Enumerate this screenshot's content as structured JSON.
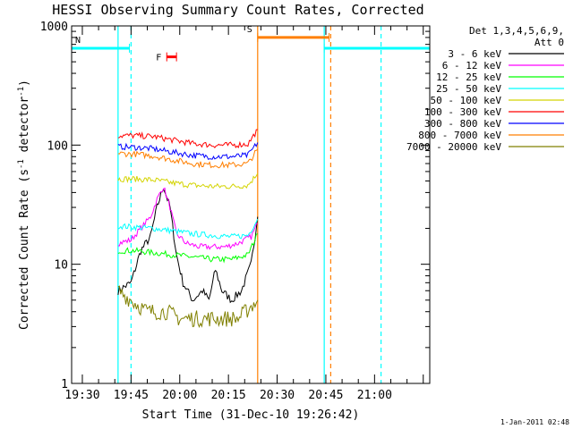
{
  "chart_data": {
    "type": "line",
    "title": "HESSI Observing Summary Count Rates, Corrected",
    "xlabel": "Start Time (31-Dec-10 19:26:42)",
    "ylabel": "Corrected Count Rate (s",
    "ylabel_sup1": "-1",
    "ylabel_mid": " detector",
    "ylabel_sup2": "-1",
    "ylabel_end": ")",
    "timestamp": "1-Jan-2011 02:48",
    "yscale": "log",
    "xlim": [
      "19:26:42",
      "21:17"
    ],
    "ylim": [
      1,
      1000
    ],
    "x_ticks": [
      "19:30",
      "19:45",
      "20:00",
      "20:15",
      "20:30",
      "20:45",
      "21:00"
    ],
    "y_ticks": [
      {
        "value": 1,
        "label": "1"
      },
      {
        "value": 10,
        "label": "10"
      },
      {
        "value": 100,
        "label": "100"
      },
      {
        "value": 1000,
        "label": "1000"
      }
    ],
    "legend": {
      "placement": "right",
      "header1": "Det 1,3,4,5,6,9,",
      "header2": "Att 0"
    },
    "series": [
      {
        "name": "3 - 6 keV",
        "color": "#000000",
        "points": [
          [
            "19:41",
            "6"
          ],
          [
            "19:45",
            "7"
          ],
          [
            "19:48",
            "13"
          ],
          [
            "19:51",
            "17"
          ],
          [
            "19:53",
            "30"
          ],
          [
            "19:55",
            "45"
          ],
          [
            "19:57",
            "30"
          ],
          [
            "19:59",
            "12"
          ],
          [
            "20:01",
            "7"
          ],
          [
            "20:04",
            "5"
          ],
          [
            "20:07",
            "6"
          ],
          [
            "20:09",
            "5"
          ],
          [
            "20:11",
            "9"
          ],
          [
            "20:13",
            "6"
          ],
          [
            "20:16",
            "5"
          ],
          [
            "20:19",
            "6"
          ],
          [
            "20:22",
            "10"
          ],
          [
            "20:24",
            "25"
          ]
        ]
      },
      {
        "name": "6 - 12 keV",
        "color": "#ff00ff",
        "points": [
          [
            "19:41",
            "15"
          ],
          [
            "19:45",
            "16"
          ],
          [
            "19:48",
            "20"
          ],
          [
            "19:51",
            "25"
          ],
          [
            "19:53",
            "35"
          ],
          [
            "19:55",
            "45"
          ],
          [
            "19:57",
            "30"
          ],
          [
            "19:59",
            "18"
          ],
          [
            "20:02",
            "15"
          ],
          [
            "20:06",
            "14"
          ],
          [
            "20:10",
            "14"
          ],
          [
            "20:14",
            "14"
          ],
          [
            "20:18",
            "15"
          ],
          [
            "20:22",
            "17"
          ],
          [
            "20:24",
            "22"
          ]
        ]
      },
      {
        "name": "12 - 25 keV",
        "color": "#00ff00",
        "points": [
          [
            "19:41",
            "13"
          ],
          [
            "19:46",
            "13"
          ],
          [
            "19:52",
            "12.5"
          ],
          [
            "19:58",
            "12"
          ],
          [
            "20:04",
            "11.5"
          ],
          [
            "20:10",
            "11"
          ],
          [
            "20:16",
            "11"
          ],
          [
            "20:21",
            "12"
          ],
          [
            "20:24",
            "18"
          ]
        ]
      },
      {
        "name": "25 - 50 keV",
        "color": "#00ffff",
        "points": [
          [
            "19:41",
            "21"
          ],
          [
            "19:46",
            "20.5"
          ],
          [
            "19:52",
            "20"
          ],
          [
            "19:58",
            "19"
          ],
          [
            "20:04",
            "18"
          ],
          [
            "20:10",
            "17.5"
          ],
          [
            "20:16",
            "17"
          ],
          [
            "20:21",
            "17.5"
          ],
          [
            "20:24",
            "24"
          ]
        ]
      },
      {
        "name": "50 - 100 keV",
        "color": "#d4d400",
        "points": [
          [
            "19:41",
            "52"
          ],
          [
            "19:46",
            "52"
          ],
          [
            "19:52",
            "51"
          ],
          [
            "19:58",
            "48"
          ],
          [
            "20:04",
            "46"
          ],
          [
            "20:10",
            "45"
          ],
          [
            "20:16",
            "45"
          ],
          [
            "20:21",
            "46"
          ],
          [
            "20:24",
            "58"
          ]
        ]
      },
      {
        "name": "100 - 300 keV",
        "color": "#ff0000",
        "points": [
          [
            "19:41",
            "120"
          ],
          [
            "19:46",
            "120"
          ],
          [
            "19:52",
            "118"
          ],
          [
            "19:58",
            "110"
          ],
          [
            "20:04",
            "103"
          ],
          [
            "20:10",
            "100"
          ],
          [
            "20:16",
            "100"
          ],
          [
            "20:21",
            "102"
          ],
          [
            "20:24",
            "135"
          ]
        ]
      },
      {
        "name": "300 - 800 keV",
        "color": "#0000ff",
        "points": [
          [
            "19:41",
            "97"
          ],
          [
            "19:46",
            "96"
          ],
          [
            "19:52",
            "93"
          ],
          [
            "19:58",
            "87"
          ],
          [
            "20:04",
            "82"
          ],
          [
            "20:10",
            "80"
          ],
          [
            "20:16",
            "80"
          ],
          [
            "20:21",
            "82"
          ],
          [
            "20:24",
            "105"
          ]
        ]
      },
      {
        "name": "800 - 7000 keV",
        "color": "#ff7f00",
        "points": [
          [
            "19:41",
            "85"
          ],
          [
            "19:46",
            "84"
          ],
          [
            "19:52",
            "81"
          ],
          [
            "19:58",
            "75"
          ],
          [
            "20:04",
            "70"
          ],
          [
            "20:10",
            "68"
          ],
          [
            "20:16",
            "68"
          ],
          [
            "20:21",
            "70"
          ],
          [
            "20:24",
            "92"
          ]
        ]
      },
      {
        "name": "7000 - 20000 keV",
        "color": "#808000",
        "points": [
          [
            "19:41",
            "6"
          ],
          [
            "19:45",
            "5"
          ],
          [
            "19:50",
            "4"
          ],
          [
            "19:56",
            "4"
          ],
          [
            "20:00",
            "3.5"
          ],
          [
            "20:06",
            "3.5"
          ],
          [
            "20:12",
            "3.5"
          ],
          [
            "20:18",
            "3.5"
          ],
          [
            "20:24",
            "5"
          ]
        ]
      }
    ],
    "flags": [
      {
        "label": "N",
        "color": "#00ffff",
        "segments": [
          [
            "19:26:42",
            "19:44:30"
          ],
          [
            "20:44:30",
            "21:17"
          ]
        ],
        "level": 650
      },
      {
        "label": "S",
        "color": "#ff7f00",
        "segments": [
          [
            "20:24:00",
            "20:46:00"
          ]
        ],
        "level": 800
      },
      {
        "label": "F",
        "color": "#ff0000",
        "segments": [
          [
            "19:56",
            "19:59"
          ]
        ],
        "level": 550
      }
    ],
    "vlines": [
      {
        "x": "19:41",
        "color": "#00ffff",
        "style": "solid"
      },
      {
        "x": "19:45",
        "color": "#00ffff",
        "style": "dashed"
      },
      {
        "x": "20:24",
        "color": "#ff7f00",
        "style": "solid"
      },
      {
        "x": "20:44:30",
        "color": "#00ffff",
        "style": "solid"
      },
      {
        "x": "20:46:30",
        "color": "#ff7f00",
        "style": "dashed"
      },
      {
        "x": "21:02",
        "color": "#00ffff",
        "style": "dashed"
      }
    ]
  }
}
